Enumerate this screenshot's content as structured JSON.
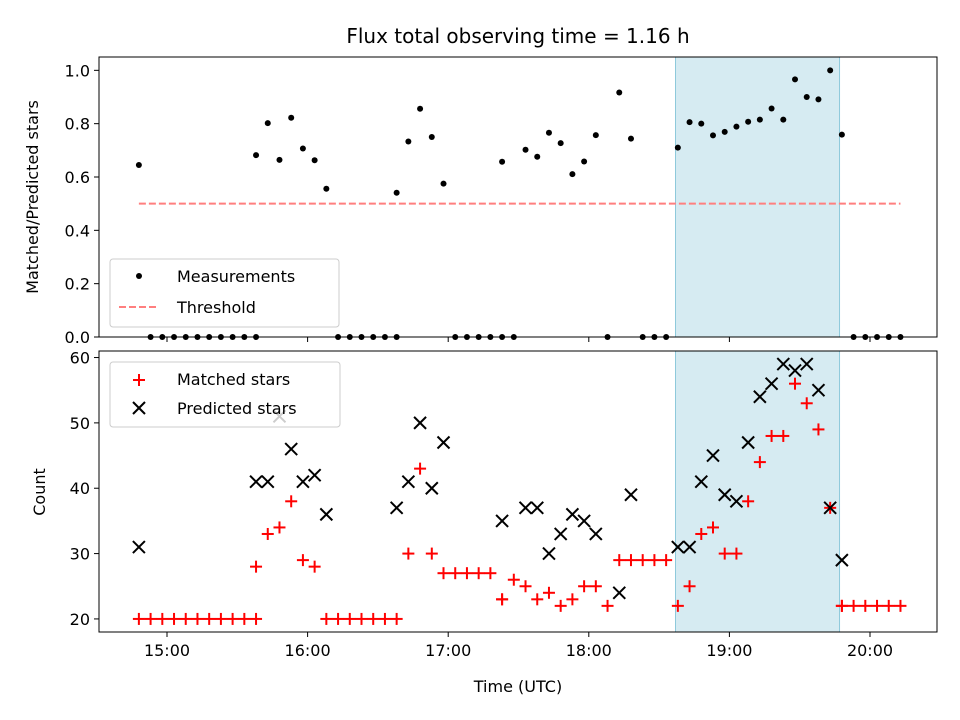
{
  "chart_data": [
    {
      "type": "scatter",
      "title": "Flux total observing time = 1.16 h",
      "xlabel": "",
      "ylabel": "Matched/Predicted stars",
      "ylim": [
        0,
        1.05
      ],
      "yticks": [
        "0.0",
        "0.2",
        "0.4",
        "0.6",
        "0.8",
        "1.0"
      ],
      "xticks": [
        "15:00",
        "16:00",
        "17:00",
        "18:00",
        "19:00",
        "20:00"
      ],
      "highlight_span": [
        "18:37",
        "19:47"
      ],
      "highlight_color": "#add8e6",
      "legend": {
        "placement": "lower-left",
        "entries": [
          "Measurements",
          "Threshold"
        ]
      },
      "series": [
        {
          "name": "Measurements",
          "color": "#000000",
          "marker": "dot",
          "x": [
            "14:48",
            "14:53",
            "14:58",
            "15:03",
            "15:08",
            "15:13",
            "15:18",
            "15:23",
            "15:28",
            "15:33",
            "15:38",
            "15:38",
            "15:43",
            "15:48",
            "15:53",
            "15:58",
            "16:03",
            "16:08",
            "16:13",
            "16:18",
            "16:23",
            "16:28",
            "16:33",
            "16:38",
            "16:38",
            "16:43",
            "16:48",
            "16:53",
            "16:58",
            "17:03",
            "17:08",
            "17:13",
            "17:18",
            "17:23",
            "17:23",
            "17:28",
            "17:33",
            "17:38",
            "17:43",
            "17:48",
            "17:53",
            "17:58",
            "18:03",
            "18:08",
            "18:13",
            "18:18",
            "18:23",
            "18:28",
            "18:33",
            "18:38",
            "18:43",
            "18:48",
            "18:53",
            "18:58",
            "19:03",
            "19:08",
            "19:13",
            "19:18",
            "19:23",
            "19:28",
            "19:33",
            "19:38",
            "19:43",
            "19:48",
            "19:53",
            "19:58",
            "20:03",
            "20:08",
            "20:13"
          ],
          "y": [
            0.645,
            0,
            0,
            0,
            0,
            0,
            0,
            0,
            0,
            0,
            0,
            0.682,
            0.802,
            0.664,
            0.822,
            0.707,
            0.663,
            0.556,
            0,
            0,
            0,
            0,
            0,
            0,
            0.541,
            0.733,
            0.856,
            0.75,
            0.575,
            0,
            0,
            0,
            0,
            0,
            0.657,
            0,
            0.702,
            0.676,
            0.766,
            0.727,
            0.611,
            0.658,
            0.757,
            0,
            0.917,
            0.744,
            0,
            0,
            0,
            0.71,
            0.806,
            0.8,
            0.756,
            0.769,
            0.789,
            0.807,
            0.815,
            0.857,
            0.815,
            0.966,
            0.9,
            0.891,
            1.0,
            0.759,
            0,
            0,
            0,
            0,
            0
          ]
        },
        {
          "name": "Threshold",
          "color": "#ff7f7f",
          "style": "dashed",
          "x": [
            "14:48",
            "20:13"
          ],
          "y": [
            0.5,
            0.5
          ]
        }
      ]
    },
    {
      "type": "scatter",
      "title": "",
      "xlabel": "Time (UTC)",
      "ylabel": "Count",
      "ylim": [
        18,
        61
      ],
      "yticks": [
        "20",
        "30",
        "40",
        "50",
        "60"
      ],
      "xticks": [
        "15:00",
        "16:00",
        "17:00",
        "18:00",
        "19:00",
        "20:00"
      ],
      "highlight_span": [
        "18:37",
        "19:47"
      ],
      "highlight_color": "#add8e6",
      "legend": {
        "placement": "upper-left",
        "entries": [
          "Matched stars",
          "Predicted stars"
        ]
      },
      "series": [
        {
          "name": "Matched stars",
          "color": "#ff0000",
          "marker": "plus",
          "x": [
            "14:48",
            "14:53",
            "14:58",
            "15:03",
            "15:08",
            "15:13",
            "15:18",
            "15:23",
            "15:28",
            "15:33",
            "15:38",
            "15:38",
            "15:43",
            "15:48",
            "15:53",
            "15:58",
            "16:03",
            "16:08",
            "16:13",
            "16:18",
            "16:23",
            "16:28",
            "16:33",
            "16:38",
            "16:43",
            "16:48",
            "16:53",
            "16:58",
            "17:03",
            "17:08",
            "17:13",
            "17:18",
            "17:23",
            "17:23",
            "17:28",
            "17:33",
            "17:38",
            "17:43",
            "17:48",
            "17:53",
            "17:58",
            "18:03",
            "18:08",
            "18:13",
            "18:18",
            "18:23",
            "18:28",
            "18:33",
            "18:38",
            "18:43",
            "18:48",
            "18:53",
            "18:58",
            "19:03",
            "19:08",
            "19:13",
            "19:18",
            "19:23",
            "19:28",
            "19:33",
            "19:38",
            "19:43",
            "19:48",
            "19:48",
            "19:53",
            "19:58",
            "20:03",
            "20:08",
            "20:13"
          ],
          "y": [
            20,
            20,
            20,
            20,
            20,
            20,
            20,
            20,
            20,
            20,
            20,
            28,
            33,
            34,
            38,
            29,
            28,
            20,
            20,
            20,
            20,
            20,
            20,
            20,
            30,
            43,
            30,
            27,
            27,
            27,
            27,
            27,
            23,
            23,
            26,
            25,
            23,
            24,
            22,
            23,
            25,
            25,
            22,
            29,
            29,
            29,
            29,
            29,
            22,
            25,
            33,
            34,
            30,
            30,
            38,
            44,
            48,
            48,
            56,
            53,
            49,
            37,
            22,
            22,
            22,
            22,
            22,
            22,
            22
          ]
        },
        {
          "name": "Predicted stars",
          "color": "#000000",
          "marker": "x",
          "x": [
            "14:48",
            "15:38",
            "15:43",
            "15:48",
            "15:53",
            "15:58",
            "16:03",
            "16:08",
            "16:38",
            "16:43",
            "16:48",
            "16:53",
            "16:58",
            "17:23",
            "17:33",
            "17:38",
            "17:43",
            "17:48",
            "17:53",
            "17:58",
            "18:03",
            "18:13",
            "18:18",
            "18:38",
            "18:43",
            "18:48",
            "18:53",
            "18:58",
            "19:03",
            "19:08",
            "19:13",
            "19:18",
            "19:23",
            "19:28",
            "19:33",
            "19:38",
            "19:43",
            "19:48"
          ],
          "y": [
            31,
            41,
            41,
            51,
            46,
            41,
            42,
            36,
            37,
            41,
            50,
            40,
            47,
            35,
            37,
            37,
            30,
            33,
            36,
            35,
            33,
            24,
            39,
            31,
            31,
            41,
            45,
            39,
            38,
            47,
            54,
            56,
            59,
            58,
            59,
            55,
            37,
            29
          ]
        }
      ]
    }
  ]
}
